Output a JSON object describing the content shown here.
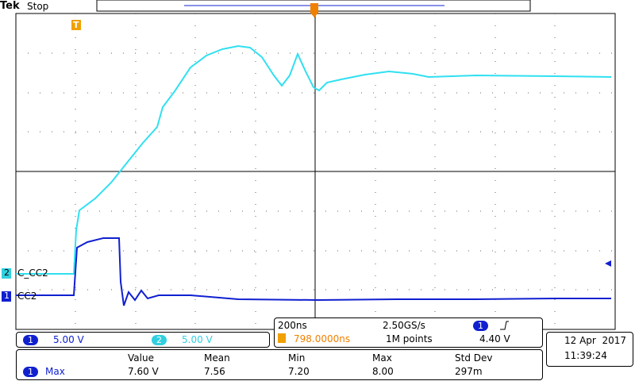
{
  "header": {
    "brand": "Tek",
    "status": "Stop"
  },
  "trigger_marker": "T",
  "channels": [
    {
      "number": "1",
      "label": "CC2",
      "scale": "5.00 V"
    },
    {
      "number": "2",
      "label": "C_CC2",
      "scale": "5.00 V"
    }
  ],
  "timebase": {
    "time_per_div": "200ns",
    "sample_rate": "2.50GS/s",
    "trigger_position": "798.0000ns",
    "record_length": "1M points",
    "trigger_channel": "1",
    "trigger_level": "4.40 V"
  },
  "date": "12 Apr  2017",
  "time": "11:39:24",
  "measurements": {
    "columns": [
      "Value",
      "Mean",
      "Min",
      "Max",
      "Std Dev"
    ],
    "rows": [
      {
        "channel": "1",
        "name": "Max",
        "values": [
          "7.60 V",
          "7.56",
          "7.20",
          "8.00",
          "297m"
        ]
      }
    ]
  }
}
